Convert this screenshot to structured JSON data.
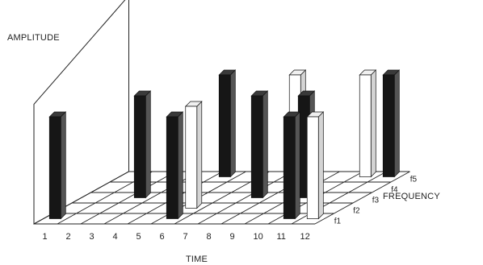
{
  "chart_data": {
    "type": "bar3d",
    "title": "",
    "xlabel": "TIME",
    "ylabel": "FREQUENCY",
    "zlabel": "AMPLITUDE",
    "x_ticks": [
      "1",
      "2",
      "3",
      "4",
      "5",
      "6",
      "7",
      "8",
      "9",
      "10",
      "11",
      "12"
    ],
    "y_ticks": [
      "f1",
      "f2",
      "f3",
      "f4",
      "f5"
    ],
    "zlim": [
      0,
      1
    ],
    "bars": [
      {
        "time": 1,
        "freq": 1,
        "amplitude": 0.55,
        "tone": "black"
      },
      {
        "time": 3,
        "freq": 3,
        "amplitude": 0.55,
        "tone": "black"
      },
      {
        "time": 5,
        "freq": 5,
        "amplitude": 0.55,
        "tone": "black"
      },
      {
        "time": 6,
        "freq": 2,
        "amplitude": 0.55,
        "tone": "white"
      },
      {
        "time": 6,
        "freq": 1,
        "amplitude": 0.55,
        "tone": "black"
      },
      {
        "time": 8,
        "freq": 5,
        "amplitude": 0.55,
        "tone": "white"
      },
      {
        "time": 8,
        "freq": 3,
        "amplitude": 0.55,
        "tone": "black"
      },
      {
        "time": 10,
        "freq": 3,
        "amplitude": 0.55,
        "tone": "black"
      },
      {
        "time": 11,
        "freq": 5,
        "amplitude": 0.55,
        "tone": "white"
      },
      {
        "time": 11,
        "freq": 1,
        "amplitude": 0.55,
        "tone": "black"
      },
      {
        "time": 12,
        "freq": 5,
        "amplitude": 0.55,
        "tone": "black"
      },
      {
        "time": 12,
        "freq": 1,
        "amplitude": 0.55,
        "tone": "white"
      }
    ]
  },
  "colors": {
    "black_bar": "#161616",
    "white_bar": "#ffffff",
    "ink": "#222222"
  }
}
